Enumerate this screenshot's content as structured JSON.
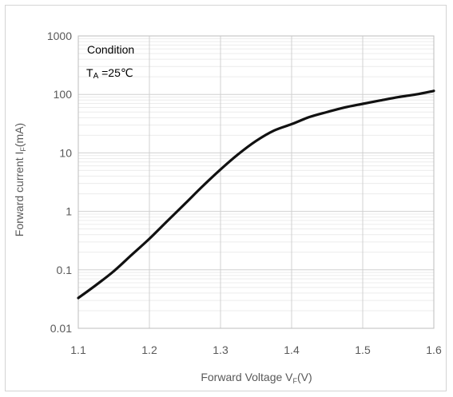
{
  "chart_data": {
    "type": "line",
    "xlabel": "Forward Voltage V",
    "xlabel_sub": "F",
    "xlabel_tail": "(V)",
    "ylabel": "Forward current I",
    "ylabel_sub": "F",
    "ylabel_tail": "(mA)",
    "xlim": [
      1.1,
      1.6
    ],
    "ylim": [
      0.01,
      1000
    ],
    "y_scale": "log",
    "grid": true,
    "x_ticks": [
      "1.1",
      "1.2",
      "1.3",
      "1.4",
      "1.5",
      "1.6"
    ],
    "y_ticks": [
      "0.01",
      "0.1",
      "1",
      "10",
      "100",
      "1000"
    ],
    "annotations": {
      "condition": "Condition",
      "temp_prefix": "T",
      "temp_sub": "A",
      "temp_value": " =25℃"
    },
    "series": [
      {
        "line_color": "#111111",
        "x": [
          1.1,
          1.125,
          1.15,
          1.175,
          1.2,
          1.225,
          1.25,
          1.275,
          1.3,
          1.325,
          1.35,
          1.375,
          1.4,
          1.425,
          1.45,
          1.475,
          1.5,
          1.525,
          1.55,
          1.575,
          1.6
        ],
        "y": [
          0.033,
          0.055,
          0.095,
          0.18,
          0.34,
          0.68,
          1.35,
          2.7,
          5.2,
          9.5,
          16,
          24,
          31,
          41,
          50,
          60,
          69,
          79,
          90,
          100,
          115
        ]
      }
    ]
  }
}
